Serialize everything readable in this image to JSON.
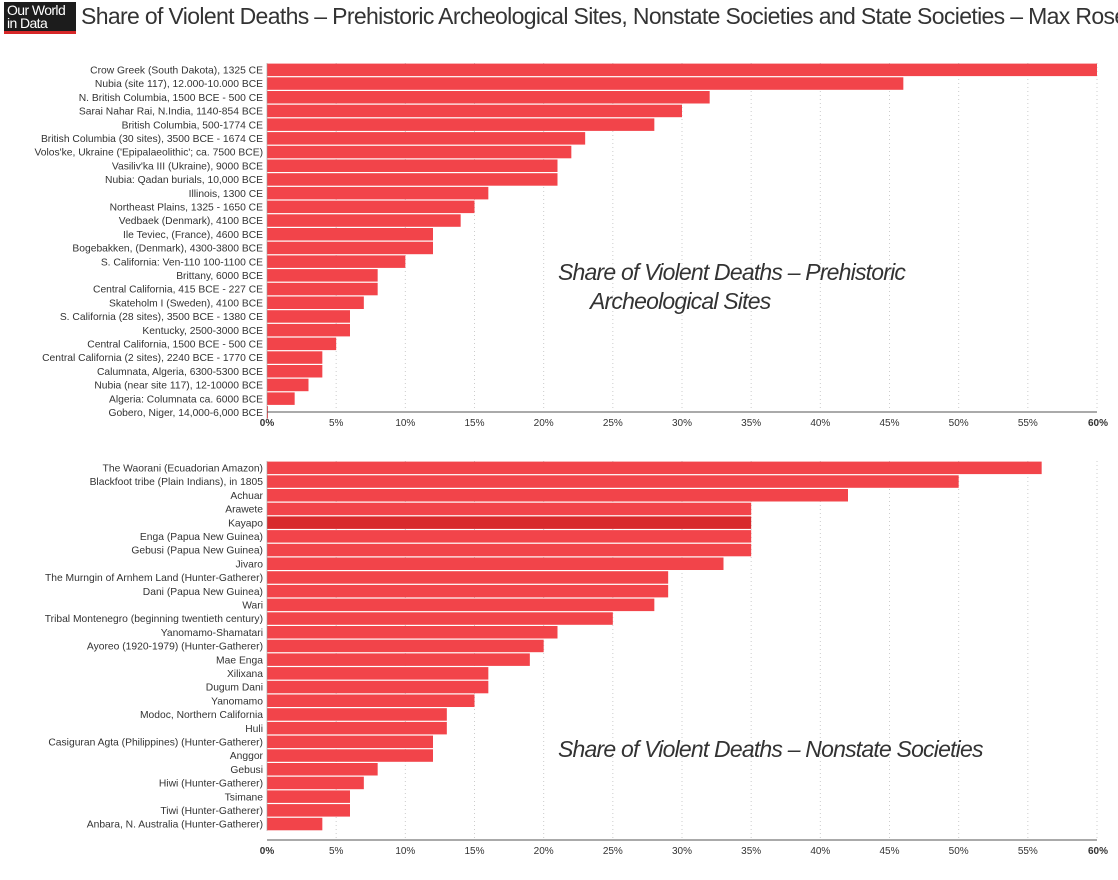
{
  "header": {
    "logo_line1": "Our World",
    "logo_line2": "in Data",
    "title": "Share of Violent Deaths – Prehistoric Archeological Sites, Nonstate Societies and State Societies – Max Roser"
  },
  "colors": {
    "bar": "#f2444a",
    "highlight": "#d82a2c",
    "grid": "#cccccc",
    "text": "#333333"
  },
  "chart_data": [
    {
      "type": "bar",
      "orientation": "horizontal",
      "title": "Share of Violent Deaths – Prehistoric Archeological Sites",
      "title_lines": [
        "Share of Violent Deaths – Prehistoric",
        "Archeological Sites"
      ],
      "xlim": [
        0,
        60
      ],
      "ticks": [
        "0%",
        "5%",
        "10%",
        "15%",
        "20%",
        "25%",
        "30%",
        "35%",
        "40%",
        "45%",
        "50%",
        "55%",
        "60%"
      ],
      "grid": true,
      "categories": [
        "Crow Greek (South Dakota), 1325 CE",
        "Nubia (site 117), 12.000-10.000 BCE",
        "N. British Columbia, 1500 BCE - 500 CE",
        "Sarai Nahar Rai, N.India, 1140-854 BCE",
        "British Columbia, 500-1774 CE",
        "British Columbia (30 sites), 3500 BCE - 1674 CE",
        "Volos'ke, Ukraine ('Epipalaeolithic'; ca. 7500 BCE)",
        "Vasiliv'ka III (Ukraine), 9000 BCE",
        "Nubia: Qadan burials, 10,000 BCE",
        "Illinois, 1300 CE",
        "Northeast Plains, 1325 - 1650 CE",
        "Vedbaek (Denmark), 4100 BCE",
        "Ile Teviec, (France), 4600 BCE",
        "Bogebakken, (Denmark), 4300-3800 BCE",
        "S. California: Ven-110 100-1100 CE",
        "Brittany, 6000 BCE",
        "Central California, 415 BCE - 227 CE",
        "Skateholm I (Sweden), 4100 BCE",
        "S. California (28 sites), 3500 BCE - 1380 CE",
        "Kentucky, 2500-3000 BCE",
        "Central California, 1500 BCE - 500 CE",
        "Central California (2 sites), 2240 BCE - 1770 CE",
        "Calumnata, Algeria, 6300-5300 BCE",
        "Nubia (near site 117), 12-10000 BCE",
        "Algeria: Columnata ca. 6000 BCE",
        "Gobero, Niger, 14,000-6,000 BCE"
      ],
      "values": [
        60,
        46,
        32,
        30,
        28,
        23,
        22,
        21,
        21,
        16,
        15,
        14,
        12,
        12,
        10,
        8,
        8,
        7,
        6,
        6,
        5,
        4,
        4,
        3,
        2,
        0
      ]
    },
    {
      "type": "bar",
      "orientation": "horizontal",
      "title": "Share of Violent Deaths – Nonstate Societies",
      "title_lines": [
        "Share of Violent Deaths – Nonstate Societies"
      ],
      "xlim": [
        0,
        60
      ],
      "ticks": [
        "0%",
        "5%",
        "10%",
        "15%",
        "20%",
        "25%",
        "30%",
        "35%",
        "40%",
        "45%",
        "50%",
        "55%",
        "60%"
      ],
      "grid": true,
      "highlighted": "Kayapo",
      "categories": [
        "The Waorani (Ecuadorian Amazon)",
        "Blackfoot tribe (Plain Indians), in 1805",
        "Achuar",
        "Arawete",
        "Kayapo",
        "Enga (Papua New Guinea)",
        "Gebusi (Papua New Guinea)",
        "Jivaro",
        "The Murngin of Arnhem Land (Hunter-Gatherer)",
        "Dani (Papua New Guinea)",
        "Wari",
        "Tribal Montenegro (beginning twentieth century)",
        "Yanomamo-Shamatari",
        "Ayoreo (1920-1979) (Hunter-Gatherer)",
        "Mae Enga",
        "Xilixana",
        "Dugum Dani",
        "Yanomamo",
        "Modoc, Northern California",
        "Huli",
        "Casiguran Agta (Philippines) (Hunter-Gatherer)",
        "Anggor",
        "Gebusi",
        "Hiwi (Hunter-Gatherer)",
        "Tsimane",
        "Tiwi (Hunter-Gatherer)",
        "Anbara, N. Australia (Hunter-Gatherer)"
      ],
      "values": [
        56,
        50,
        42,
        35,
        35,
        35,
        35,
        33,
        29,
        29,
        28,
        25,
        21,
        20,
        19,
        16,
        16,
        15,
        13,
        13,
        12,
        12,
        8,
        7,
        6,
        6,
        4
      ]
    }
  ]
}
